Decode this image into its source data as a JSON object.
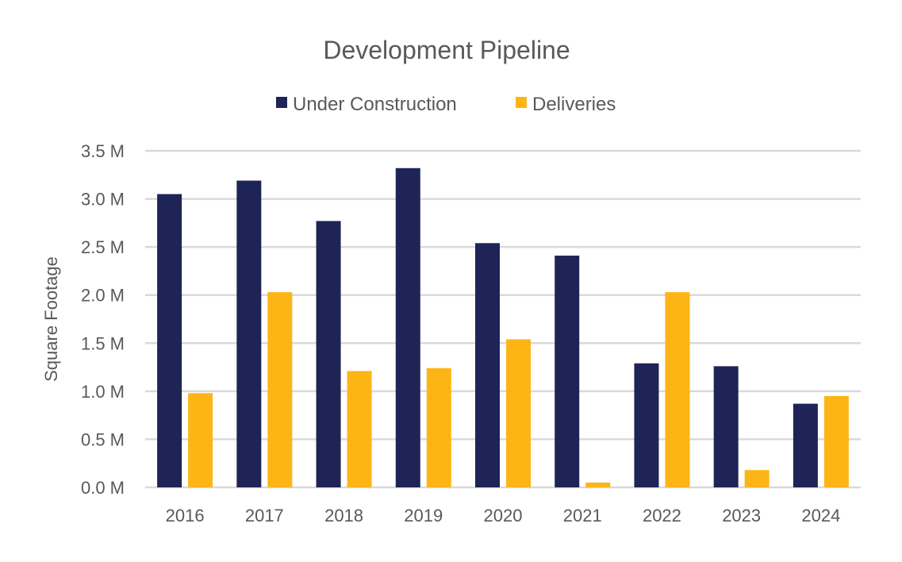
{
  "chart_data": {
    "type": "bar",
    "title": "Development Pipeline",
    "xlabel": "",
    "ylabel": "Square Footage",
    "ylim": [
      0,
      3.5
    ],
    "yticks": [
      "0.0 M",
      "0.5 M",
      "1.0 M",
      "1.5 M",
      "2.0 M",
      "2.5 M",
      "3.0 M",
      "3.5 M"
    ],
    "grid": true,
    "legend_position": "top",
    "categories": [
      "2016",
      "2017",
      "2018",
      "2019",
      "2020",
      "2021",
      "2022",
      "2023",
      "2024"
    ],
    "series": [
      {
        "name": "Under Construction",
        "color": "#1f2456",
        "values": [
          3.05,
          3.19,
          2.77,
          3.32,
          2.54,
          2.41,
          1.29,
          1.26,
          0.87
        ]
      },
      {
        "name": "Deliveries",
        "color": "#fdb515",
        "values": [
          0.98,
          2.03,
          1.21,
          1.24,
          1.54,
          0.05,
          2.03,
          0.18,
          0.95
        ]
      }
    ]
  }
}
